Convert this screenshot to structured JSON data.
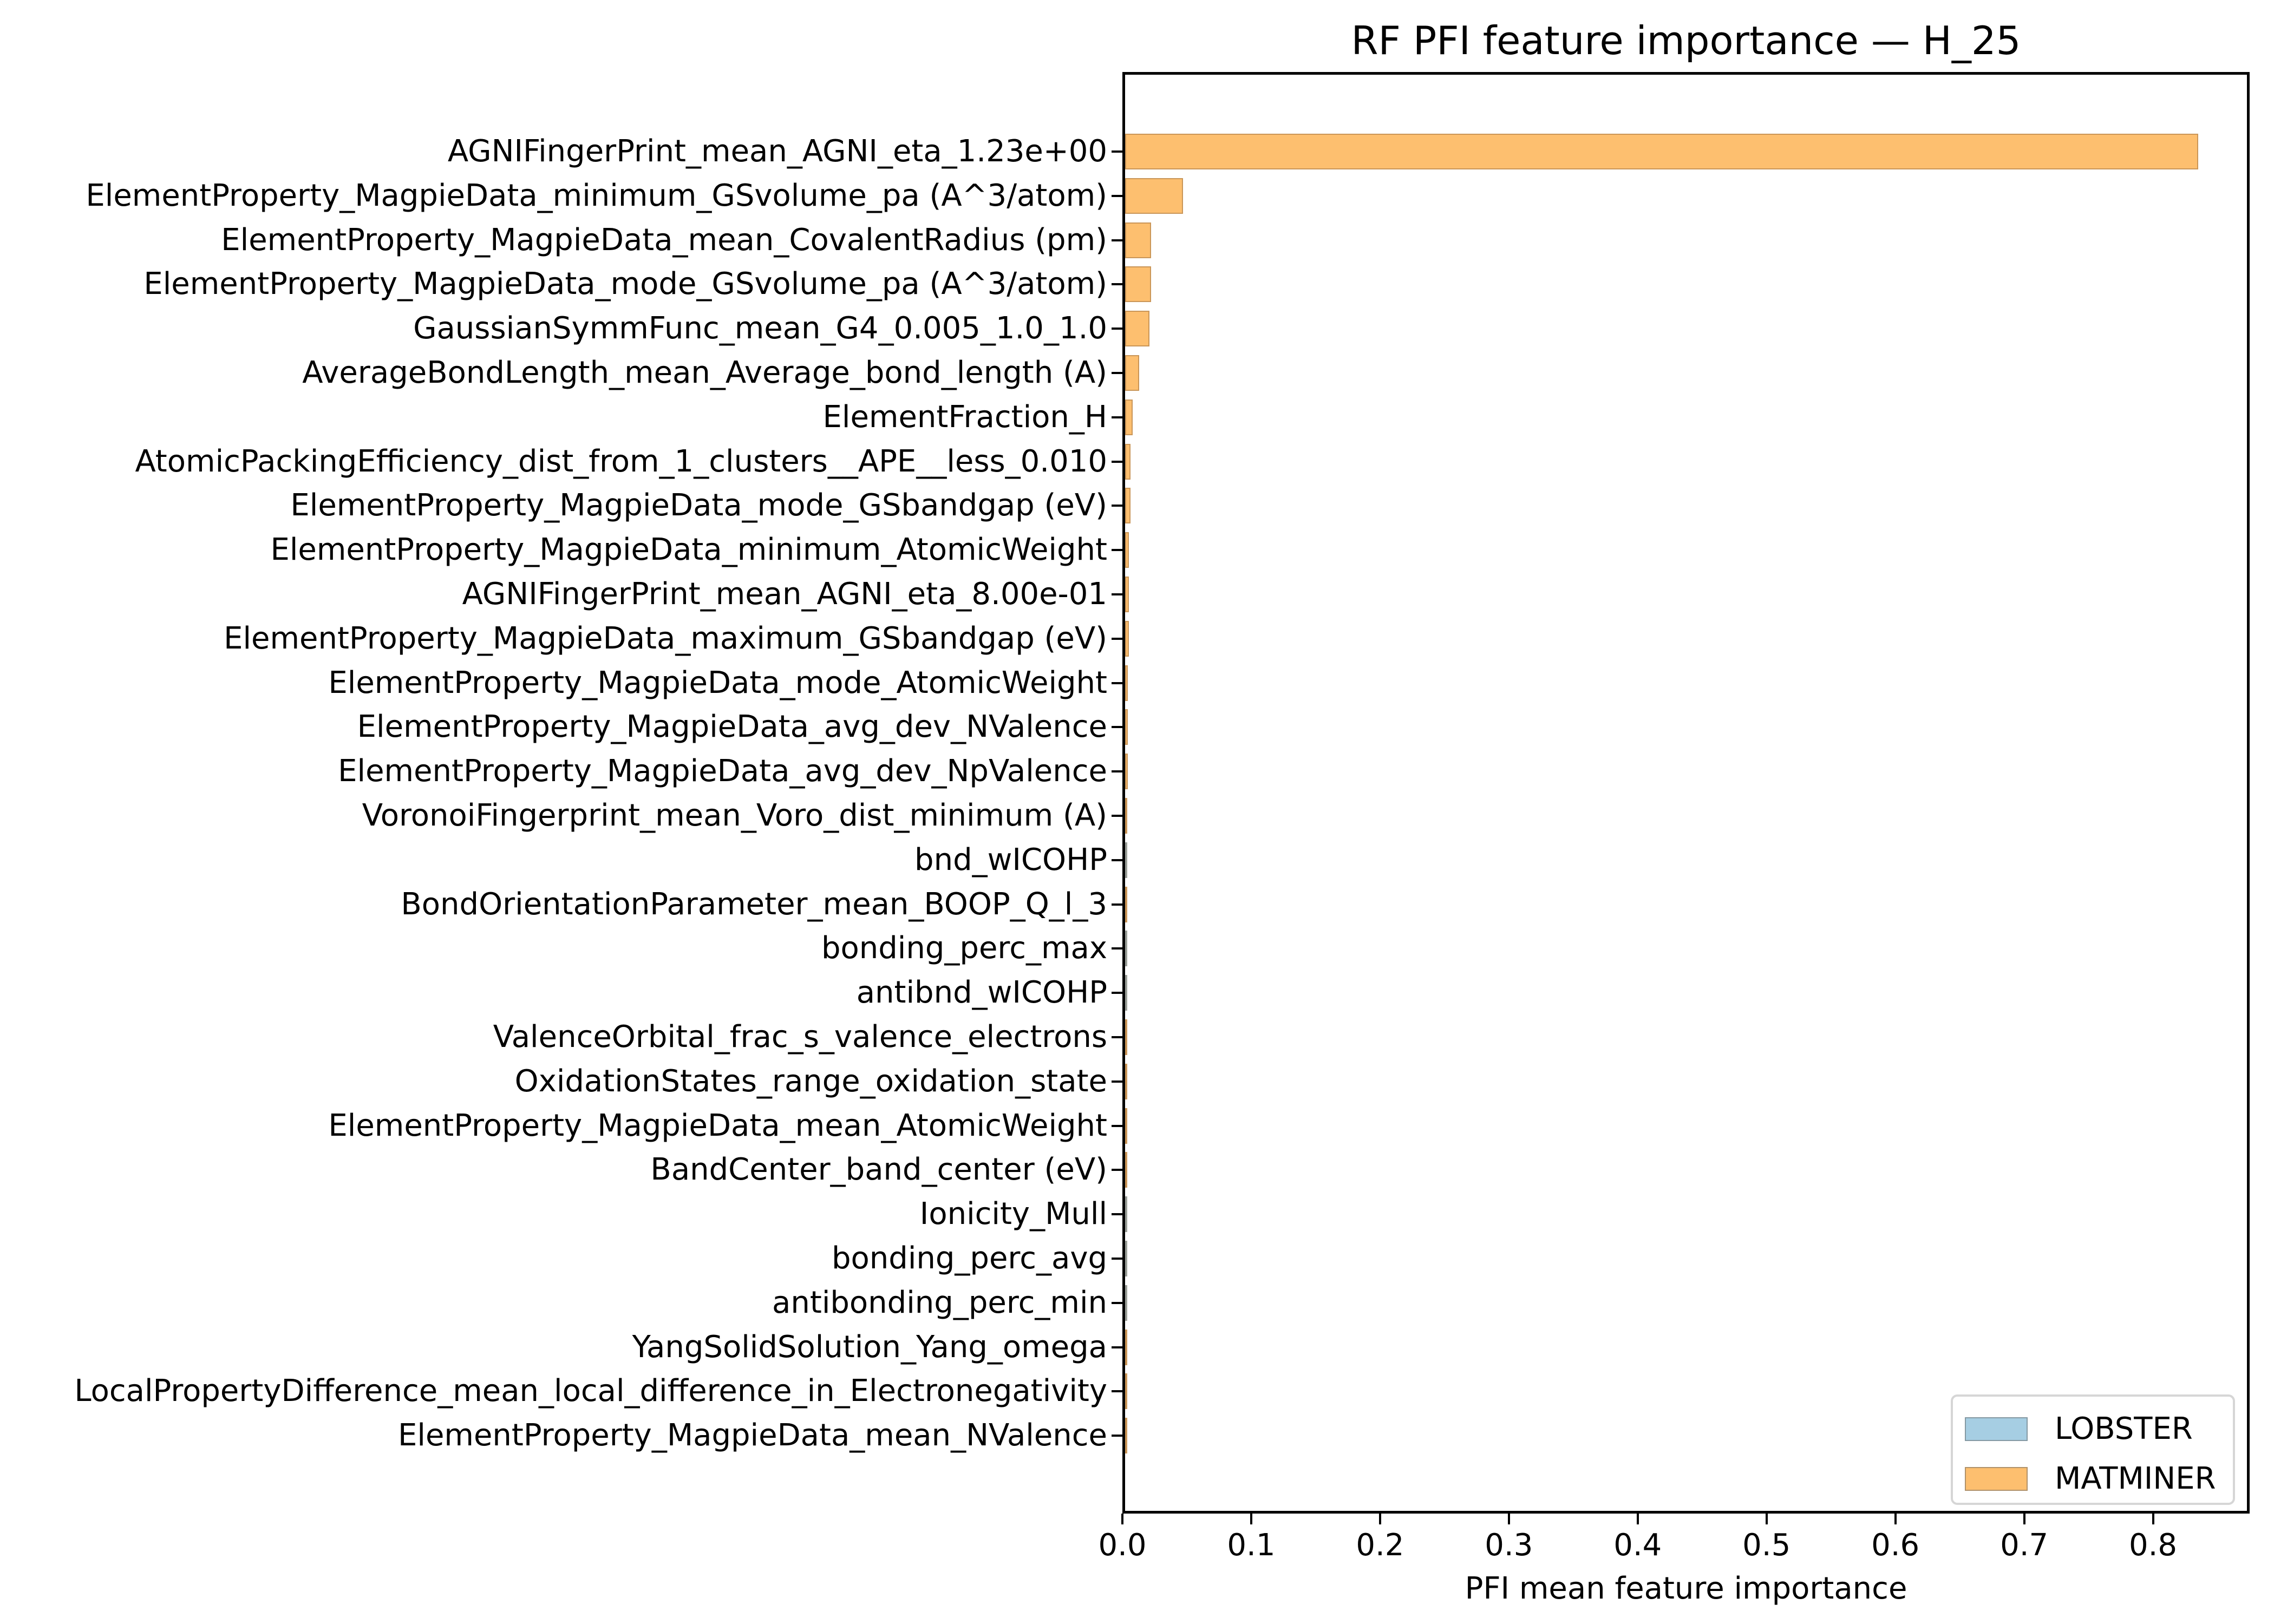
{
  "chart_data": {
    "type": "bar",
    "orientation": "horizontal",
    "title": "RF PFI feature importance — H_25",
    "xlabel": "PFI mean feature importance",
    "ylabel": "",
    "xlim": [
      0,
      0.875
    ],
    "xticks": [
      "0.0",
      "0.1",
      "0.2",
      "0.3",
      "0.4",
      "0.5",
      "0.6",
      "0.7",
      "0.8"
    ],
    "grid": false,
    "legend_position": "lower right",
    "legend": [
      {
        "name": "LOBSTER",
        "color": "#a6cee3"
      },
      {
        "name": "MATMINER",
        "color": "#fdbf6f"
      }
    ],
    "categories": [
      "AGNIFingerPrint_mean_AGNI_eta_1.23e+00",
      "ElementProperty_MagpieData_minimum_GSvolume_pa (A^3/atom)",
      "ElementProperty_MagpieData_mean_CovalentRadius (pm)",
      "ElementProperty_MagpieData_mode_GSvolume_pa (A^3/atom)",
      "GaussianSymmFunc_mean_G4_0.005_1.0_1.0",
      "AverageBondLength_mean_Average_bond_length (A)",
      "ElementFraction_H",
      "AtomicPackingEfficiency_dist_from_1_clusters__APE__less_0.010",
      "ElementProperty_MagpieData_mode_GSbandgap (eV)",
      "ElementProperty_MagpieData_minimum_AtomicWeight",
      "AGNIFingerPrint_mean_AGNI_eta_8.00e-01",
      "ElementProperty_MagpieData_maximum_GSbandgap (eV)",
      "ElementProperty_MagpieData_mode_AtomicWeight",
      "ElementProperty_MagpieData_avg_dev_NValence",
      "ElementProperty_MagpieData_avg_dev_NpValence",
      "VoronoiFingerprint_mean_Voro_dist_minimum (A)",
      "bnd_wICOHP",
      "BondOrientationParameter_mean_BOOP_Q_l_3",
      "bonding_perc_max",
      "antibnd_wICOHP",
      "ValenceOrbital_frac_s_valence_electrons",
      "OxidationStates_range_oxidation_state",
      "ElementProperty_MagpieData_mean_AtomicWeight",
      "BandCenter_band_center (eV)",
      "Ionicity_Mull",
      "bonding_perc_avg",
      "antibonding_perc_min",
      "YangSolidSolution_Yang_omega",
      "LocalPropertyDifference_mean_local_difference_in_Electronegativity",
      "ElementProperty_MagpieData_mean_NValence"
    ],
    "values": [
      0.833,
      0.045,
      0.02,
      0.02,
      0.019,
      0.011,
      0.006,
      0.004,
      0.004,
      0.003,
      0.003,
      0.003,
      0.002,
      0.002,
      0.002,
      0.001,
      0.001,
      0.001,
      0.001,
      0.001,
      0.0008,
      0.0008,
      0.0008,
      0.0008,
      0.0006,
      0.0006,
      0.0006,
      0.0005,
      0.0003,
      0.0002
    ],
    "groups": [
      "MATMINER",
      "MATMINER",
      "MATMINER",
      "MATMINER",
      "MATMINER",
      "MATMINER",
      "MATMINER",
      "MATMINER",
      "MATMINER",
      "MATMINER",
      "MATMINER",
      "MATMINER",
      "MATMINER",
      "MATMINER",
      "MATMINER",
      "MATMINER",
      "LOBSTER",
      "MATMINER",
      "LOBSTER",
      "LOBSTER",
      "MATMINER",
      "MATMINER",
      "MATMINER",
      "MATMINER",
      "LOBSTER",
      "LOBSTER",
      "LOBSTER",
      "MATMINER",
      "MATMINER",
      "MATMINER"
    ]
  }
}
